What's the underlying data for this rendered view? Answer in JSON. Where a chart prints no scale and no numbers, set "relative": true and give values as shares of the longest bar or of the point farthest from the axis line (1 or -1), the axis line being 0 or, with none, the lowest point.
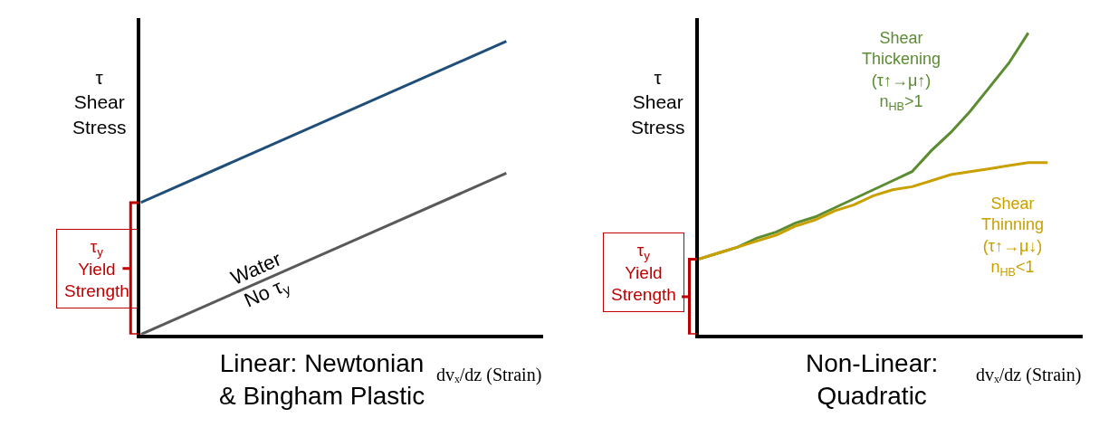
{
  "chart_data": [
    {
      "type": "line",
      "title": "Linear: Newtonian\n& Bingham Plastic",
      "xlabel": "dvₓ/dz (Strain)",
      "ylabel": "τ\nShear\nStress",
      "relative": true,
      "categories": [
        null,
        null
      ],
      "series": [
        {
          "color": "#1f4e79",
          "values": [
            0.45,
            1
          ]
        },
        {
          "name": "Water\nNo τ$_{y}$",
          "color": "#595959",
          "values": [
            0,
            0.55
          ]
        }
      ],
      "annotations": [
        "τ$_{y}$\nYield\nStrength"
      ]
    },
    {
      "type": "line",
      "title": "Non-Linear:\nQuadratic",
      "xlabel": "dvₓ/dz (Strain)",
      "ylabel": "τ\nShear\nStress",
      "relative": true,
      "categories": [
        null,
        null,
        null,
        null,
        null,
        null,
        null,
        null,
        null,
        null,
        null,
        null,
        null,
        null,
        null,
        null,
        null,
        null,
        null
      ],
      "series": [
        {
          "name": "Shear\nThickening\n(τ↑→μ↑)\nn$_{HB}$>1",
          "color": "#5b8c32",
          "values": [
            0.25,
            0.27,
            0.29,
            0.32,
            0.34,
            0.37,
            0.39,
            0.42,
            0.45,
            0.48,
            0.51,
            0.54,
            0.61,
            0.67,
            0.74,
            0.82,
            0.9,
            1,
            null
          ]
        },
        {
          "name": "Shear\nThinning\n(τ↑→μ↓)\nn$_{HB}$<1",
          "color": "#c9a000",
          "values": [
            0.25,
            0.27,
            0.29,
            0.31,
            0.33,
            0.36,
            0.38,
            0.41,
            0.43,
            0.46,
            0.48,
            0.49,
            0.51,
            0.53,
            0.54,
            0.55,
            0.56,
            0.57,
            0.57
          ]
        }
      ],
      "annotations": [
        "τ$_{y}$\nYield\nStrength"
      ]
    }
  ]
}
